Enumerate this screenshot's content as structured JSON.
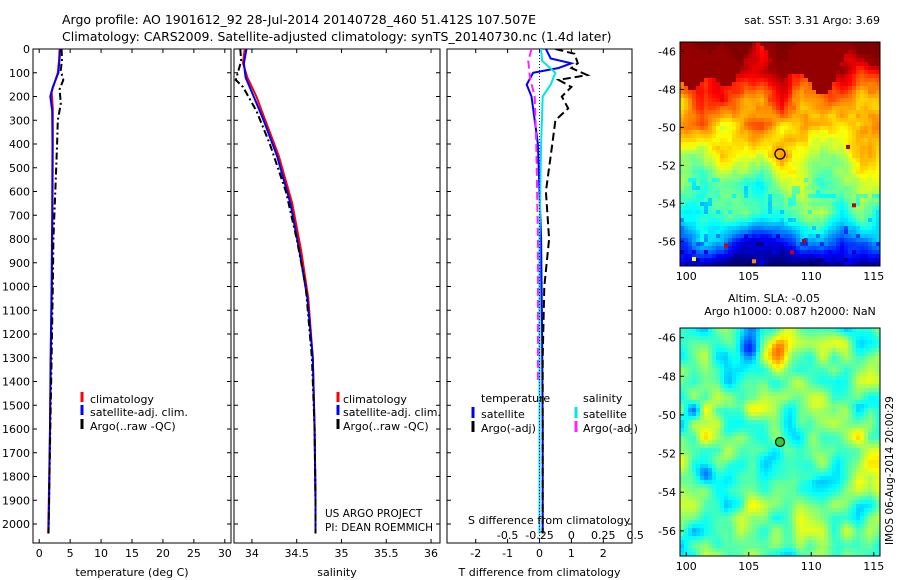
{
  "header": {
    "title_line1": "Argo profile: AO 1901612_92 28-Jul-2014 20140728_460 51.412S 107.507E",
    "title_line2": "Climatology: CARS2009. Satellite-adjusted climatology: synTS_20140730.nc (1.4d later)"
  },
  "credits": {
    "project": "US ARGO PROJECT",
    "pi": "PI: DEAN ROEMMICH",
    "imos": "IMOS 06-Aug-2014 20:00:29"
  },
  "colors": {
    "climatology": "#ff0000",
    "satellite": "#0000ff",
    "argo": "#000000",
    "salinity_satellite": "#00e5e5",
    "salinity_argo": "#ff22ff"
  },
  "chart_data": [
    {
      "type": "line",
      "id": "temperature",
      "xlabel": "temperature (deg C)",
      "xlim": [
        -1,
        31
      ],
      "xticks": [
        0,
        5,
        10,
        15,
        20,
        25,
        30
      ],
      "ylim": [
        2080,
        0
      ],
      "yticks": [
        0,
        100,
        200,
        300,
        400,
        500,
        600,
        700,
        800,
        900,
        1000,
        1100,
        1200,
        1300,
        1400,
        1500,
        1600,
        1700,
        1800,
        1900,
        2000
      ],
      "legend": [
        "climatology",
        "satellite-adj. clim.",
        "Argo(..raw -QC)"
      ],
      "series": [
        {
          "name": "climatology",
          "color": "#ff0000",
          "dash": "",
          "points": [
            [
              3.3,
              0
            ],
            [
              3.2,
              50
            ],
            [
              3.0,
              100
            ],
            [
              2.4,
              150
            ],
            [
              2.0,
              180
            ],
            [
              2.2,
              250
            ],
            [
              2.2,
              400
            ],
            [
              2.15,
              700
            ],
            [
              2.05,
              1000
            ],
            [
              1.9,
              1300
            ],
            [
              1.75,
              1600
            ],
            [
              1.55,
              1900
            ],
            [
              1.45,
              2040
            ]
          ]
        },
        {
          "name": "satellite-adj. clim.",
          "color": "#0000ff",
          "dash": "",
          "points": [
            [
              3.4,
              0
            ],
            [
              3.3,
              40
            ],
            [
              3.1,
              100
            ],
            [
              2.2,
              160
            ],
            [
              1.8,
              200
            ],
            [
              2.1,
              260
            ],
            [
              2.15,
              400
            ],
            [
              2.1,
              700
            ],
            [
              2.0,
              1000
            ],
            [
              1.85,
              1300
            ],
            [
              1.75,
              1600
            ],
            [
              1.6,
              1900
            ],
            [
              1.5,
              2040
            ]
          ]
        },
        {
          "name": "Argo(..raw -QC)",
          "color": "#000000",
          "dash": "7,3,2,3",
          "points": [
            [
              3.6,
              0
            ],
            [
              3.7,
              40
            ],
            [
              3.5,
              90
            ],
            [
              3.9,
              130
            ],
            [
              3.3,
              170
            ],
            [
              3.5,
              230
            ],
            [
              3.0,
              300
            ],
            [
              2.9,
              400
            ],
            [
              2.6,
              600
            ],
            [
              2.3,
              800
            ],
            [
              2.2,
              1000
            ],
            [
              2.0,
              1300
            ],
            [
              1.8,
              1600
            ],
            [
              1.6,
              1900
            ],
            [
              1.5,
              2040
            ]
          ]
        }
      ]
    },
    {
      "type": "line",
      "id": "salinity",
      "xlabel": "salinity",
      "xlim": [
        33.8,
        36.1
      ],
      "xticks": [
        34,
        34.5,
        35,
        35.5,
        36
      ],
      "ylim": [
        2080,
        0
      ],
      "legend": [
        "climatology",
        "satellite-adj. clim.",
        "Argo(..raw -QC)"
      ],
      "series": [
        {
          "name": "climatology",
          "color": "#ff0000",
          "dash": "",
          "points": [
            [
              33.92,
              0
            ],
            [
              33.9,
              60
            ],
            [
              33.95,
              120
            ],
            [
              34.05,
              200
            ],
            [
              34.15,
              300
            ],
            [
              34.3,
              450
            ],
            [
              34.45,
              650
            ],
            [
              34.55,
              850
            ],
            [
              34.63,
              1050
            ],
            [
              34.68,
              1300
            ],
            [
              34.7,
              1600
            ],
            [
              34.71,
              1900
            ],
            [
              34.71,
              2040
            ]
          ]
        },
        {
          "name": "satellite-adj. clim.",
          "color": "#0000ff",
          "dash": "",
          "points": [
            [
              33.94,
              0
            ],
            [
              33.91,
              60
            ],
            [
              33.93,
              120
            ],
            [
              34.02,
              200
            ],
            [
              34.13,
              300
            ],
            [
              34.28,
              450
            ],
            [
              34.43,
              650
            ],
            [
              34.53,
              850
            ],
            [
              34.62,
              1050
            ],
            [
              34.68,
              1300
            ],
            [
              34.7,
              1600
            ],
            [
              34.71,
              1900
            ],
            [
              34.71,
              2040
            ]
          ]
        },
        {
          "name": "Argo(..raw -QC)",
          "color": "#000000",
          "dash": "7,3,2,3",
          "points": [
            [
              33.87,
              0
            ],
            [
              33.88,
              50
            ],
            [
              33.85,
              90
            ],
            [
              33.82,
              130
            ],
            [
              33.9,
              160
            ],
            [
              34.05,
              260
            ],
            [
              34.2,
              400
            ],
            [
              34.38,
              600
            ],
            [
              34.5,
              800
            ],
            [
              34.6,
              1000
            ],
            [
              34.67,
              1300
            ],
            [
              34.7,
              1600
            ],
            [
              34.71,
              1900
            ],
            [
              34.71,
              2040
            ]
          ]
        }
      ]
    },
    {
      "type": "line",
      "id": "difference",
      "xlabel": "T difference from climatology",
      "xlabel_top": "S difference from climatology",
      "xlim": [
        -2.9,
        2.9
      ],
      "xticks": [
        -2,
        -1,
        0,
        1,
        2
      ],
      "xticks_top": [
        "-0.5",
        "-0.25",
        "0",
        "0.25",
        "0.5"
      ],
      "ylim": [
        2080,
        0
      ],
      "legend_groups": [
        "temperature",
        "salinity"
      ],
      "legend": [
        "satellite",
        "Argo(-adj)",
        "satellite",
        "Argo(-adj)"
      ],
      "series": [
        {
          "name": "satellite",
          "group": "temperature",
          "color": "#0000ff",
          "dash": "",
          "points": [
            [
              0.2,
              0
            ],
            [
              0.35,
              40
            ],
            [
              1.0,
              60
            ],
            [
              0.6,
              80
            ],
            [
              -0.2,
              100
            ],
            [
              -0.4,
              150
            ],
            [
              -0.25,
              200
            ],
            [
              -0.05,
              400
            ],
            [
              0.05,
              800
            ],
            [
              0.08,
              1200
            ],
            [
              0.1,
              1600
            ],
            [
              0.1,
              2040
            ]
          ]
        },
        {
          "name": "Argo(-adj)",
          "group": "temperature",
          "color": "#000000",
          "dash": "8,4",
          "points": [
            [
              0.5,
              0
            ],
            [
              1.1,
              20
            ],
            [
              1.2,
              60
            ],
            [
              1.0,
              80
            ],
            [
              1.5,
              110
            ],
            [
              0.6,
              130
            ],
            [
              1.0,
              160
            ],
            [
              0.7,
              200
            ],
            [
              0.9,
              250
            ],
            [
              0.5,
              300
            ],
            [
              0.4,
              400
            ],
            [
              0.2,
              600
            ],
            [
              0.3,
              800
            ],
            [
              0.15,
              1000
            ],
            [
              0.1,
              1300
            ],
            [
              0.1,
              1700
            ],
            [
              0.1,
              2040
            ]
          ]
        },
        {
          "name": "satellite",
          "group": "salinity",
          "color": "#00e5e5",
          "dash": "",
          "points": [
            [
              0.05,
              0
            ],
            [
              0.08,
              50
            ],
            [
              0.5,
              100
            ],
            [
              0.35,
              150
            ],
            [
              0.1,
              200
            ],
            [
              0.05,
              400
            ],
            [
              0.0,
              800
            ],
            [
              0.0,
              1200
            ],
            [
              0.0,
              1600
            ],
            [
              0.0,
              2040
            ]
          ]
        },
        {
          "name": "Argo(-adj)",
          "group": "salinity",
          "color": "#ff22ff",
          "dash": "8,4",
          "points": [
            [
              -0.25,
              0
            ],
            [
              -0.35,
              50
            ],
            [
              -0.3,
              120
            ],
            [
              -0.15,
              200
            ],
            [
              -0.1,
              400
            ],
            [
              -0.05,
              800
            ],
            [
              -0.05,
              1200
            ],
            [
              -0.05,
              1400
            ]
          ]
        },
        {
          "name": "zero",
          "color": "#0000ff",
          "dash": "1,2",
          "points": [
            [
              0,
              0
            ],
            [
              0,
              2080
            ]
          ]
        }
      ]
    },
    {
      "type": "heatmap",
      "id": "sst_map",
      "title": "sat. SST: 3.31 Argo: 3.69",
      "xlim": [
        99.5,
        115.5
      ],
      "xticks": [
        100,
        105,
        110,
        115
      ],
      "ylim": [
        -57.3,
        -45.5
      ],
      "yticks": [
        -46,
        -48,
        -50,
        -52,
        -54,
        -56
      ],
      "marker": {
        "lon": 107.5,
        "lat": -51.4
      }
    },
    {
      "type": "heatmap",
      "id": "sla_map",
      "title": "Altim. SLA: -0.05",
      "subtitle": "Argo h1000: 0.087 h2000: NaN",
      "xlim": [
        99.5,
        115.5
      ],
      "xticks": [
        100,
        105,
        110,
        115
      ],
      "ylim": [
        -57.3,
        -45.5
      ],
      "yticks": [
        -46,
        -48,
        -50,
        -52,
        -54,
        -56
      ],
      "marker": {
        "lon": 107.5,
        "lat": -51.4
      }
    }
  ]
}
